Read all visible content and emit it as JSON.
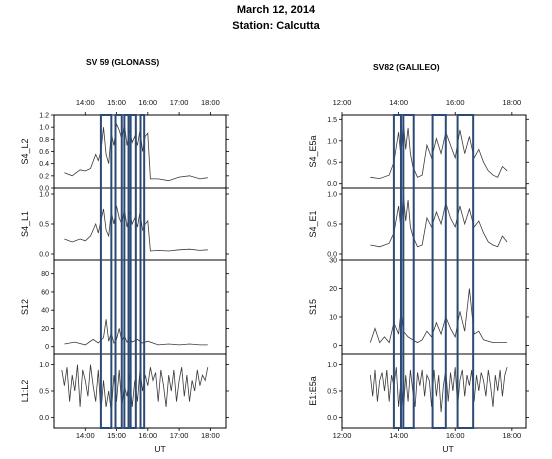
{
  "header": {
    "title": "March 12, 2014",
    "station": "Station: Calcutta"
  },
  "colors": {
    "trace": "#3a3a3a",
    "box": "#2c4a75",
    "axis": "#000000"
  },
  "chart_data": [
    {
      "type": "line",
      "title": "SV 59 (GLONASS)",
      "xlabel": "UT",
      "xlim": [
        "13:00",
        "18:30"
      ],
      "xticks": [
        "14:00",
        "15:00",
        "16:00",
        "17:00",
        "18:00"
      ],
      "highlight_boxes": [
        [
          "14:30",
          "14:50"
        ],
        [
          "14:58",
          "15:10"
        ],
        [
          "15:15",
          "15:23"
        ],
        [
          "15:27",
          "15:37"
        ],
        [
          "15:46",
          "15:53"
        ]
      ],
      "panels": [
        {
          "ylabel": "S4_L2",
          "ylim": [
            0.0,
            1.2
          ],
          "yticks": [
            "0.0",
            "0.2",
            "0.4",
            "0.6",
            "0.8",
            "1.0",
            "1.2"
          ],
          "series": [
            {
              "x": [
                "13:20",
                "13:35",
                "13:50",
                "14:00",
                "14:10",
                "14:20",
                "14:25",
                "14:30",
                "14:35",
                "14:40",
                "14:45",
                "14:50",
                "14:55",
                "15:00",
                "15:05",
                "15:10",
                "15:15",
                "15:20",
                "15:25",
                "15:30",
                "15:35",
                "15:40",
                "15:45",
                "15:50",
                "15:55",
                "16:00",
                "16:05",
                "16:20",
                "16:40",
                "17:00",
                "17:20",
                "17:40",
                "17:55"
              ],
              "y": [
                0.25,
                0.2,
                0.3,
                0.28,
                0.32,
                0.55,
                0.45,
                0.6,
                1.0,
                0.55,
                0.4,
                0.9,
                0.7,
                1.05,
                0.95,
                0.8,
                1.05,
                0.7,
                0.95,
                0.75,
                0.85,
                0.7,
                0.95,
                0.6,
                0.85,
                0.9,
                0.15,
                0.15,
                0.12,
                0.18,
                0.2,
                0.15,
                0.17
              ]
            }
          ]
        },
        {
          "ylabel": "S4_L1",
          "ylim": [
            -0.1,
            1.1
          ],
          "yticks": [
            "0.0",
            "0.5",
            "1.0"
          ],
          "series": [
            {
              "x": [
                "13:20",
                "13:35",
                "13:50",
                "14:00",
                "14:10",
                "14:20",
                "14:25",
                "14:30",
                "14:35",
                "14:40",
                "14:45",
                "14:50",
                "14:55",
                "15:00",
                "15:05",
                "15:10",
                "15:15",
                "15:20",
                "15:25",
                "15:30",
                "15:35",
                "15:40",
                "15:45",
                "15:50",
                "15:55",
                "16:00",
                "16:05",
                "16:20",
                "16:40",
                "17:00",
                "17:20",
                "17:40",
                "17:55"
              ],
              "y": [
                0.25,
                0.2,
                0.25,
                0.22,
                0.3,
                0.5,
                0.35,
                0.55,
                0.75,
                0.4,
                0.3,
                0.7,
                0.5,
                0.8,
                0.6,
                0.5,
                0.75,
                0.45,
                0.7,
                0.5,
                0.6,
                0.45,
                0.7,
                0.4,
                0.5,
                0.55,
                0.05,
                0.06,
                0.05,
                0.07,
                0.08,
                0.06,
                0.07
              ]
            }
          ]
        },
        {
          "ylabel": "S12",
          "ylim": [
            -8,
            95
          ],
          "yticks": [
            "0",
            "20",
            "40",
            "60",
            "80"
          ],
          "series": [
            {
              "x": [
                "13:20",
                "13:40",
                "14:00",
                "14:15",
                "14:25",
                "14:35",
                "14:40",
                "14:45",
                "14:50",
                "14:55",
                "15:00",
                "15:05",
                "15:10",
                "15:15",
                "15:20",
                "15:25",
                "15:30",
                "15:40",
                "15:50",
                "16:00",
                "16:20",
                "16:40",
                "17:00",
                "17:20",
                "17:40",
                "17:55"
              ],
              "y": [
                3,
                5,
                2,
                8,
                4,
                10,
                30,
                6,
                15,
                4,
                8,
                20,
                6,
                12,
                5,
                10,
                5,
                8,
                4,
                6,
                2,
                3,
                2,
                3,
                2,
                2
              ]
            }
          ]
        },
        {
          "ylabel": "L1:L2",
          "ylim": [
            -0.2,
            1.2
          ],
          "yticks": [
            "0.0",
            "0.5",
            "1.0"
          ],
          "series": [
            {
              "x": [
                "13:15",
                "13:20",
                "13:25",
                "13:30",
                "13:35",
                "13:40",
                "13:45",
                "13:50",
                "13:55",
                "14:00",
                "14:05",
                "14:10",
                "14:15",
                "14:20",
                "14:25",
                "14:30",
                "14:35",
                "14:40",
                "14:45",
                "14:50",
                "14:55",
                "15:00",
                "15:05",
                "15:10",
                "15:15",
                "15:20",
                "15:25",
                "15:30",
                "15:35",
                "15:40",
                "15:45",
                "15:50",
                "15:55",
                "16:00",
                "16:05",
                "16:10",
                "16:15",
                "16:20",
                "16:25",
                "16:30",
                "16:35",
                "16:40",
                "16:45",
                "16:50",
                "16:55",
                "17:00",
                "17:05",
                "17:10",
                "17:15",
                "17:20",
                "17:25",
                "17:30",
                "17:35",
                "17:40",
                "17:45",
                "17:50",
                "17:55"
              ],
              "y": [
                0.9,
                0.6,
                0.95,
                0.3,
                0.8,
                0.5,
                1.0,
                0.2,
                0.9,
                0.7,
                0.4,
                1.0,
                0.6,
                0.3,
                0.9,
                0.1,
                0.7,
                0.2,
                0.5,
                0.1,
                0.8,
                0.3,
                0.9,
                0.2,
                0.6,
                0.4,
                0.8,
                0.2,
                0.7,
                0.3,
                0.9,
                0.5,
                0.8,
                0.6,
                0.95,
                0.7,
                0.85,
                0.3,
                0.9,
                0.6,
                0.2,
                0.8,
                0.5,
                0.9,
                0.3,
                0.7,
                0.95,
                0.4,
                0.8,
                0.3,
                0.7,
                0.5,
                0.9,
                0.6,
                0.8,
                0.7,
                0.95
              ]
            }
          ]
        }
      ]
    },
    {
      "type": "line",
      "title": "SV82 (GALILEO)",
      "xlabel": "UT",
      "xlim": [
        "12:00",
        "18:30"
      ],
      "xticks": [
        "12:00",
        "14:00",
        "16:00",
        "18:00"
      ],
      "highlight_boxes": [
        [
          "13:50",
          "14:05"
        ],
        [
          "14:10",
          "14:32"
        ],
        [
          "15:12",
          "15:40"
        ],
        [
          "16:05",
          "16:38"
        ]
      ],
      "panels": [
        {
          "ylabel": "S4_E5a",
          "ylim": [
            -0.1,
            1.6
          ],
          "yticks": [
            "0.0",
            "0.5",
            "1.0",
            "1.5"
          ],
          "series": [
            {
              "x": [
                "13:00",
                "13:20",
                "13:40",
                "13:50",
                "14:00",
                "14:05",
                "14:10",
                "14:15",
                "14:20",
                "14:25",
                "14:30",
                "14:40",
                "14:50",
                "15:00",
                "15:10",
                "15:20",
                "15:30",
                "15:40",
                "15:50",
                "16:00",
                "16:10",
                "16:20",
                "16:30",
                "16:40",
                "16:50",
                "17:00",
                "17:10",
                "17:20",
                "17:30",
                "17:40",
                "17:50"
              ],
              "y": [
                0.15,
                0.12,
                0.2,
                0.5,
                1.2,
                0.6,
                1.45,
                0.8,
                1.3,
                0.7,
                0.4,
                0.15,
                0.2,
                0.9,
                0.6,
                1.05,
                0.7,
                1.2,
                0.9,
                0.6,
                1.25,
                0.7,
                1.1,
                0.6,
                0.8,
                0.5,
                0.3,
                0.2,
                0.15,
                0.4,
                0.3
              ]
            }
          ]
        },
        {
          "ylabel": "S4_E1",
          "ylim": [
            -0.1,
            1.1
          ],
          "yticks": [
            "0.0",
            "0.5",
            "1.0"
          ],
          "series": [
            {
              "x": [
                "13:00",
                "13:20",
                "13:40",
                "13:50",
                "14:00",
                "14:05",
                "14:10",
                "14:15",
                "14:20",
                "14:25",
                "14:30",
                "14:40",
                "14:50",
                "15:00",
                "15:10",
                "15:20",
                "15:30",
                "15:40",
                "15:50",
                "16:00",
                "16:10",
                "16:20",
                "16:30",
                "16:40",
                "16:50",
                "17:00",
                "17:10",
                "17:20",
                "17:30",
                "17:40",
                "17:50"
              ],
              "y": [
                0.15,
                0.12,
                0.18,
                0.35,
                0.8,
                0.4,
                1.0,
                0.55,
                0.9,
                0.45,
                0.3,
                0.12,
                0.15,
                0.6,
                0.45,
                0.7,
                0.5,
                0.85,
                0.6,
                0.45,
                0.8,
                0.5,
                0.75,
                0.45,
                0.55,
                0.35,
                0.2,
                0.15,
                0.12,
                0.3,
                0.2
              ]
            }
          ]
        },
        {
          "ylabel": "S15",
          "ylim": [
            -3,
            30
          ],
          "yticks": [
            "0",
            "10",
            "20",
            "30"
          ],
          "series": [
            {
              "x": [
                "13:00",
                "13:10",
                "13:20",
                "13:30",
                "13:40",
                "13:50",
                "14:00",
                "14:05",
                "14:10",
                "14:20",
                "14:30",
                "14:40",
                "14:50",
                "15:00",
                "15:10",
                "15:20",
                "15:30",
                "15:40",
                "15:50",
                "16:00",
                "16:10",
                "16:20",
                "16:30",
                "16:40",
                "16:50",
                "17:00",
                "17:20",
                "17:40",
                "17:50"
              ],
              "y": [
                1,
                6,
                1,
                3,
                1,
                8,
                4,
                12,
                5,
                3,
                2,
                1,
                2,
                5,
                3,
                8,
                4,
                10,
                6,
                3,
                12,
                5,
                20,
                4,
                5,
                2,
                1,
                1,
                1
              ]
            }
          ]
        },
        {
          "ylabel": "E1:E5a",
          "ylim": [
            -0.2,
            1.2
          ],
          "yticks": [
            "0.0",
            "0.5",
            "1.0"
          ],
          "series": [
            {
              "x": [
                "13:00",
                "13:05",
                "13:10",
                "13:15",
                "13:20",
                "13:25",
                "13:30",
                "13:35",
                "13:40",
                "13:45",
                "13:50",
                "13:55",
                "14:00",
                "14:05",
                "14:10",
                "14:15",
                "14:20",
                "14:25",
                "14:30",
                "14:35",
                "14:40",
                "14:45",
                "14:50",
                "14:55",
                "15:00",
                "15:05",
                "15:10",
                "15:15",
                "15:20",
                "15:25",
                "15:30",
                "15:35",
                "15:40",
                "15:45",
                "15:50",
                "15:55",
                "16:00",
                "16:05",
                "16:10",
                "16:15",
                "16:20",
                "16:25",
                "16:30",
                "16:35",
                "16:40",
                "16:45",
                "16:50",
                "16:55",
                "17:00",
                "17:05",
                "17:10",
                "17:15",
                "17:20",
                "17:25",
                "17:30",
                "17:35",
                "17:40",
                "17:45",
                "17:50"
              ],
              "y": [
                0.8,
                0.4,
                0.9,
                0.3,
                0.7,
                0.85,
                0.5,
                0.9,
                0.3,
                0.8,
                0.6,
                0.95,
                0.2,
                0.7,
                0.1,
                0.8,
                0.3,
                0.9,
                0.5,
                0.2,
                0.85,
                0.6,
                0.9,
                0.4,
                0.8,
                0.7,
                0.2,
                0.9,
                0.4,
                0.8,
                0.1,
                0.6,
                0.9,
                0.3,
                0.85,
                0.5,
                0.95,
                0.2,
                0.7,
                0.9,
                0.4,
                0.8,
                0.6,
                0.9,
                0.3,
                0.8,
                0.5,
                0.85,
                0.7,
                0.4,
                0.9,
                0.6,
                0.2,
                0.8,
                0.5,
                0.9,
                0.4,
                0.8,
                0.95
              ]
            }
          ]
        }
      ]
    }
  ]
}
